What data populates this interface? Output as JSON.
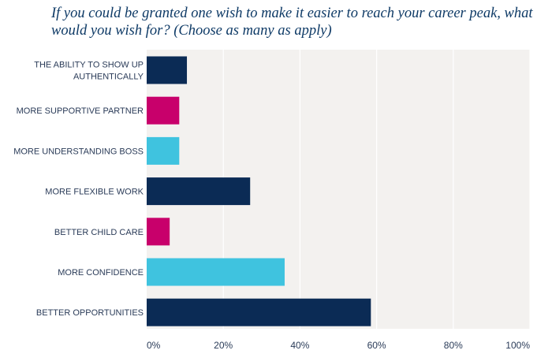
{
  "chart_data": {
    "type": "bar",
    "orientation": "horizontal",
    "title": "If you could be granted one wish to make it easier to reach your career peak, what would you wish for? (Choose as many as apply)",
    "xlabel": "",
    "ylabel": "",
    "xlim": [
      0,
      100
    ],
    "unit": "%",
    "categories": [
      [
        "THE ABILITY TO SHOW UP",
        "AUTHENTICALLY"
      ],
      [
        "MORE SUPPORTIVE PARTNER"
      ],
      [
        "MORE UNDERSTANDING BOSS"
      ],
      [
        "MORE FLEXIBLE WORK"
      ],
      [
        "BETTER CHILD CARE"
      ],
      [
        "MORE CONFIDENCE"
      ],
      [
        "BETTER OPPORTUNITIES"
      ]
    ],
    "values": [
      10.5,
      8.5,
      8.5,
      27,
      6,
      36,
      58.5
    ],
    "bar_colors": [
      "#0b2b55",
      "#c8006b",
      "#3fc3df",
      "#0b2b55",
      "#c8006b",
      "#3fc3df",
      "#0b2b55"
    ],
    "x_ticks": [
      0,
      20,
      40,
      60,
      80,
      100
    ],
    "x_tick_labels": [
      "0%",
      "20%",
      "40%",
      "60%",
      "80%",
      "100%"
    ],
    "grid": true,
    "legend": "none",
    "background_color": "#f3f1ef",
    "label_color": "#2a3b58"
  }
}
